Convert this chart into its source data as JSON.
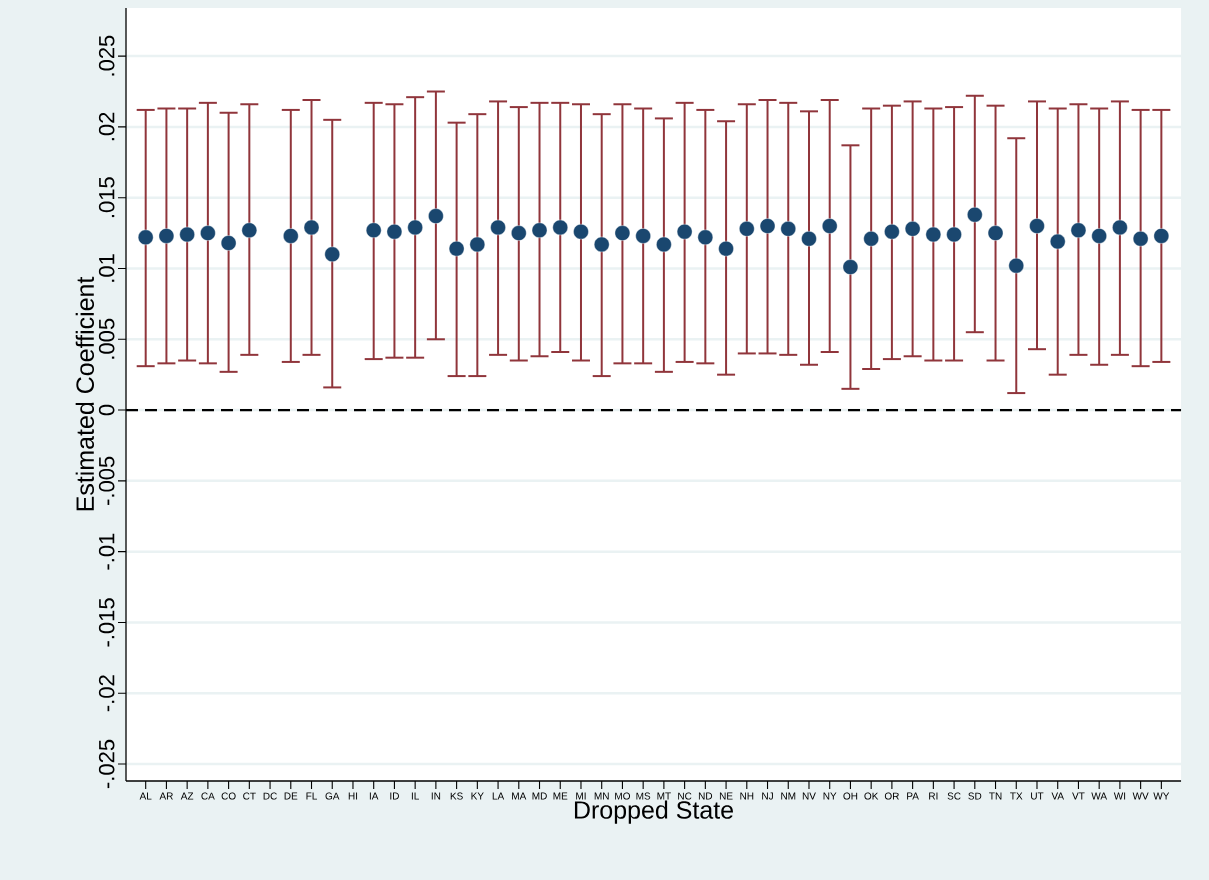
{
  "chart_data": {
    "type": "scatter",
    "xlabel": "Dropped State",
    "ylabel": "Estimated Coefficient",
    "categories": [
      "AL",
      "AR",
      "AZ",
      "CA",
      "CO",
      "CT",
      "DC",
      "DE",
      "FL",
      "GA",
      "HI",
      "IA",
      "ID",
      "IL",
      "IN",
      "KS",
      "KY",
      "LA",
      "MA",
      "MD",
      "ME",
      "MI",
      "MN",
      "MO",
      "MS",
      "MT",
      "NC",
      "ND",
      "NE",
      "NH",
      "NJ",
      "NM",
      "NV",
      "NY",
      "OH",
      "OK",
      "OR",
      "PA",
      "RI",
      "SC",
      "SD",
      "TN",
      "TX",
      "UT",
      "VA",
      "VT",
      "WA",
      "WI",
      "WV",
      "WY"
    ],
    "series": [
      {
        "color": "#1a476f",
        "marker": "circle",
        "values": [
          0.0122,
          0.0123,
          0.0124,
          0.0125,
          0.0118,
          0.0127,
          null,
          0.0123,
          0.0129,
          0.011,
          null,
          0.0127,
          0.0126,
          0.0129,
          0.0137,
          0.0114,
          0.0117,
          0.0129,
          0.0125,
          0.0127,
          0.0129,
          0.0126,
          0.0117,
          0.0125,
          0.0123,
          0.0117,
          0.0126,
          0.0122,
          0.0114,
          0.0128,
          0.013,
          0.0128,
          0.0121,
          0.013,
          0.0101,
          0.0121,
          0.0126,
          0.0128,
          0.0124,
          0.0124,
          0.0138,
          0.0125,
          0.0102,
          0.013,
          0.0119,
          0.0127,
          0.0123,
          0.0129,
          0.0121,
          0.0123
        ],
        "errors": [
          [
            0.0031,
            0.0212
          ],
          [
            0.0033,
            0.0213
          ],
          [
            0.0035,
            0.0213
          ],
          [
            0.0033,
            0.0217
          ],
          [
            0.0027,
            0.021
          ],
          [
            0.0039,
            0.0216
          ],
          null,
          [
            0.0034,
            0.0212
          ],
          [
            0.0039,
            0.0219
          ],
          [
            0.0016,
            0.0205
          ],
          null,
          [
            0.0036,
            0.0217
          ],
          [
            0.0037,
            0.0216
          ],
          [
            0.0037,
            0.0221
          ],
          [
            0.005,
            0.0225
          ],
          [
            0.0024,
            0.0203
          ],
          [
            0.0024,
            0.0209
          ],
          [
            0.0039,
            0.0218
          ],
          [
            0.0035,
            0.0214
          ],
          [
            0.0038,
            0.0217
          ],
          [
            0.0041,
            0.0217
          ],
          [
            0.0035,
            0.0216
          ],
          [
            0.0024,
            0.0209
          ],
          [
            0.0033,
            0.0216
          ],
          [
            0.0033,
            0.0213
          ],
          [
            0.0027,
            0.0206
          ],
          [
            0.0034,
            0.0217
          ],
          [
            0.0033,
            0.0212
          ],
          [
            0.0025,
            0.0204
          ],
          [
            0.004,
            0.0216
          ],
          [
            0.004,
            0.0219
          ],
          [
            0.0039,
            0.0217
          ],
          [
            0.0032,
            0.0211
          ],
          [
            0.0041,
            0.0219
          ],
          [
            0.0015,
            0.0187
          ],
          [
            0.0029,
            0.0213
          ],
          [
            0.0036,
            0.0215
          ],
          [
            0.0038,
            0.0218
          ],
          [
            0.0035,
            0.0213
          ],
          [
            0.0035,
            0.0214
          ],
          [
            0.0055,
            0.0222
          ],
          [
            0.0035,
            0.0215
          ],
          [
            0.0012,
            0.0192
          ],
          [
            0.0043,
            0.0218
          ],
          [
            0.0025,
            0.0213
          ],
          [
            0.0039,
            0.0216
          ],
          [
            0.0032,
            0.0213
          ],
          [
            0.0039,
            0.0218
          ],
          [
            0.0031,
            0.0212
          ],
          [
            0.0034,
            0.0212
          ]
        ]
      }
    ],
    "ylim": [
      -0.0262,
      0.0284
    ],
    "yticks": [
      {
        "value": -0.025,
        "label": "-.025"
      },
      {
        "value": -0.02,
        "label": "-.02"
      },
      {
        "value": -0.015,
        "label": "-.015"
      },
      {
        "value": -0.01,
        "label": "-.01"
      },
      {
        "value": -0.005,
        "label": "-.005"
      },
      0,
      {
        "value": 0.005,
        "label": ".005"
      },
      {
        "value": 0.01,
        "label": ".01"
      },
      {
        "value": 0.015,
        "label": ".015"
      },
      {
        "value": 0.02,
        "label": ".02"
      },
      {
        "value": 0.025,
        "label": ".025"
      }
    ],
    "grid": "y",
    "ref_lines": [
      {
        "axis": "y",
        "value": 0,
        "color": "#000000",
        "line_style": "dashed"
      }
    ]
  }
}
